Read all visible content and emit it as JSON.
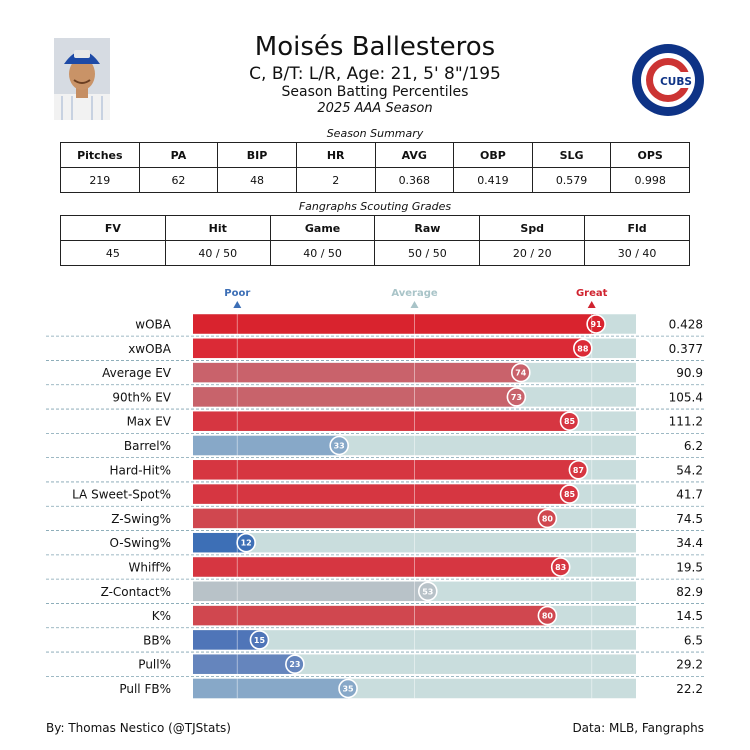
{
  "player": {
    "name": "Moisés Ballesteros",
    "subtitle": "C, B/T: L/R, Age: 21, 5' 8\"/195",
    "report_title": "Season Batting Percentiles",
    "season": "2025 AAA Season",
    "logo_text": "CUBS"
  },
  "season_summary": {
    "caption": "Season Summary",
    "headers": [
      "Pitches",
      "PA",
      "BIP",
      "HR",
      "AVG",
      "OBP",
      "SLG",
      "OPS"
    ],
    "values": [
      "219",
      "62",
      "48",
      "2",
      "0.368",
      "0.419",
      "0.579",
      "0.998"
    ]
  },
  "scouting": {
    "caption": "Fangraphs Scouting Grades",
    "headers": [
      "FV",
      "Hit",
      "Game",
      "Raw",
      "Spd",
      "Fld"
    ],
    "values": [
      "45",
      "40 / 50",
      "40 / 50",
      "50 / 50",
      "20 / 20",
      "30 / 40"
    ]
  },
  "chart_data": {
    "type": "bar",
    "orientation": "horizontal",
    "xlim": [
      0,
      100
    ],
    "markers": [
      {
        "label": "Poor",
        "at": 10,
        "color": "#3d6fb6"
      },
      {
        "label": "Average",
        "at": 50,
        "color": "#a9c4c8"
      },
      {
        "label": "Great",
        "at": 90,
        "color": "#d0232f"
      }
    ],
    "categories": [
      "wOBA",
      "xwOBA",
      "Average EV",
      "90th% EV",
      "Max EV",
      "Barrel%",
      "Hard-Hit%",
      "LA Sweet-Spot%",
      "Z-Swing%",
      "O-Swing%",
      "Whiff%",
      "Z-Contact%",
      "K%",
      "BB%",
      "Pull%",
      "Pull FB%"
    ],
    "percentiles": [
      91,
      88,
      74,
      73,
      85,
      33,
      87,
      85,
      80,
      12,
      83,
      53,
      80,
      15,
      23,
      35
    ],
    "stat_values": [
      "0.428",
      "0.377",
      "90.9",
      "105.4",
      "111.2",
      "6.2",
      "54.2",
      "41.7",
      "74.5",
      "34.4",
      "19.5",
      "82.9",
      "14.5",
      "6.5",
      "29.2",
      "22.2"
    ],
    "colors": [
      "#d9232e",
      "#db2a36",
      "#c9626b",
      "#c8636b",
      "#d63641",
      "#87a8c8",
      "#d63641",
      "#d63641",
      "#d0474f",
      "#3d6fb6",
      "#d63641",
      "#b8c2c8",
      "#d0474f",
      "#4f75b8",
      "#6585bd",
      "#87a8c8"
    ],
    "track_color": "#c9dddd"
  },
  "footer": {
    "left": "By: Thomas Nestico (@TJStats)",
    "right": "Data: MLB, Fangraphs"
  }
}
